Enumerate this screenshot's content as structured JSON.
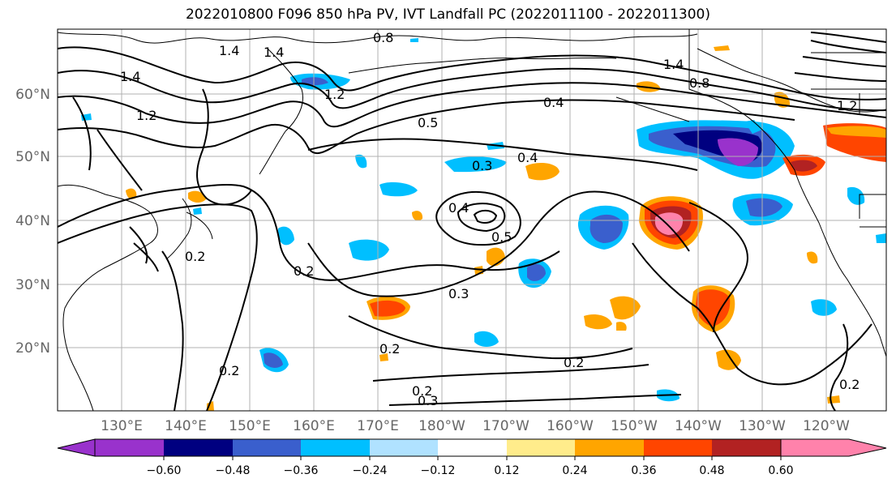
{
  "title": "2022010800 F096 850 hPa PV, IVT Landfall PC (2022011100 - 2022011300)",
  "map": {
    "lat_labels": [
      "60°N",
      "50°N",
      "40°N",
      "30°N",
      "20°N"
    ],
    "lon_labels": [
      "130°E",
      "140°E",
      "150°E",
      "160°E",
      "170°E",
      "180°W",
      "170°W",
      "160°W",
      "150°W",
      "140°W",
      "130°W",
      "120°W"
    ],
    "contour_labels": [
      "0.8",
      "1.4",
      "1.4",
      "1.4",
      "1.2",
      "1.2",
      "0.5",
      "0.4",
      "0.3",
      "0.4",
      "0.5",
      "0.4",
      "0.2",
      "0.3",
      "0.2",
      "0.2",
      "0.2",
      "0.3",
      "0.2",
      "0.2",
      "1.4",
      "0.8",
      "1.2",
      "0.2"
    ]
  },
  "colorbar": {
    "ticks": [
      "−0.60",
      "−0.48",
      "−0.36",
      "−0.24",
      "−0.12",
      "0.12",
      "0.24",
      "0.36",
      "0.48",
      "0.60"
    ],
    "colors": [
      "#9932CC",
      "#000080",
      "#3A5FCD",
      "#00BFFF",
      "#B0E2FF",
      "#FFFFFF",
      "#FFEC8B",
      "#FFA500",
      "#FF4500",
      "#B22222",
      "#FF82AB"
    ]
  }
}
